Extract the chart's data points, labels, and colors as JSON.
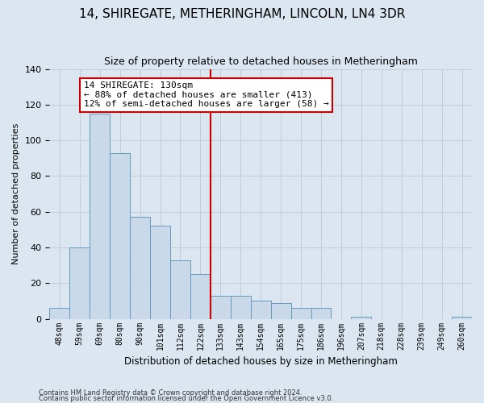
{
  "title": "14, SHIREGATE, METHERINGHAM, LINCOLN, LN4 3DR",
  "subtitle": "Size of property relative to detached houses in Metheringham",
  "xlabel": "Distribution of detached houses by size in Metheringham",
  "ylabel": "Number of detached properties",
  "categories": [
    "48sqm",
    "59sqm",
    "69sqm",
    "80sqm",
    "90sqm",
    "101sqm",
    "112sqm",
    "122sqm",
    "133sqm",
    "143sqm",
    "154sqm",
    "165sqm",
    "175sqm",
    "186sqm",
    "196sqm",
    "207sqm",
    "218sqm",
    "228sqm",
    "239sqm",
    "249sqm",
    "260sqm"
  ],
  "values": [
    6,
    40,
    115,
    93,
    57,
    52,
    33,
    25,
    13,
    13,
    10,
    9,
    6,
    6,
    0,
    1,
    0,
    0,
    0,
    0,
    1
  ],
  "bar_color": "#c9d9ea",
  "bar_edge_color": "#6699bb",
  "vline_color": "#cc0000",
  "vline_index": 8,
  "annotation_text": "14 SHIREGATE: 130sqm\n← 88% of detached houses are smaller (413)\n12% of semi-detached houses are larger (58) →",
  "annotation_box_facecolor": "white",
  "annotation_box_edgecolor": "#cc0000",
  "grid_color": "#c0ccd8",
  "bg_color": "#dce6f0",
  "ylim": [
    0,
    140
  ],
  "yticks": [
    0,
    20,
    40,
    60,
    80,
    100,
    120,
    140
  ],
  "footer1": "Contains HM Land Registry data © Crown copyright and database right 2024.",
  "footer2": "Contains public sector information licensed under the Open Government Licence v3.0."
}
